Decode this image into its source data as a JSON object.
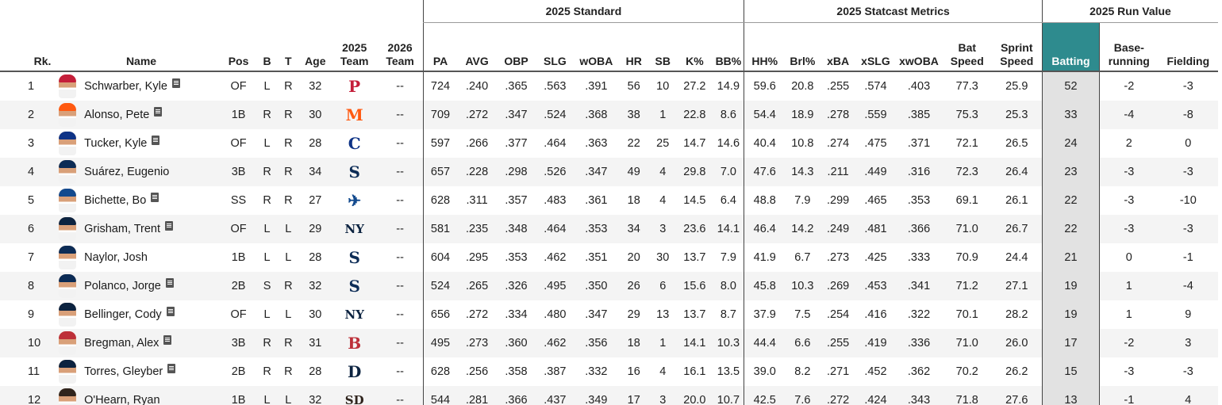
{
  "groups": {
    "standard": "2025 Standard",
    "statcast": "2025 Statcast Metrics",
    "run_value": "2025 Run Value"
  },
  "headers": {
    "rk": "Rk.",
    "name": "Name",
    "pos": "Pos",
    "b": "B",
    "t": "T",
    "age": "Age",
    "team_2025": [
      "2025",
      "Team"
    ],
    "team_2026": [
      "2026",
      "Team"
    ],
    "pa": "PA",
    "avg": "AVG",
    "obp": "OBP",
    "slg": "SLG",
    "woba": "wOBA",
    "hr": "HR",
    "sb": "SB",
    "k_pct": "K%",
    "bb_pct": "BB%",
    "hh_pct": "HH%",
    "brl_pct": "Brl%",
    "xba": "xBA",
    "xslg": "xSLG",
    "xwoba": "xwOBA",
    "bat_speed": [
      "Bat",
      "Speed"
    ],
    "sprint_speed": [
      "Sprint",
      "Speed"
    ],
    "batting": "Batting",
    "baserunning": [
      "Base-",
      "running"
    ],
    "fielding": "Fielding"
  },
  "colors": {
    "batting_header": "#2e8b8e",
    "batting_column": "#e2e2e2",
    "row_stripe": "#f4f4f4"
  },
  "rows": [
    {
      "rk": "1",
      "name": "Schwarber, Kyle",
      "note": true,
      "pos": "OF",
      "b": "L",
      "t": "R",
      "age": "32",
      "team_logo": "P",
      "team_color": "#c41e3a",
      "team_2026": "--",
      "pa": "724",
      "avg": ".240",
      "obp": ".365",
      "slg": ".563",
      "woba": ".391",
      "hr": "56",
      "sb": "10",
      "k": "27.2",
      "bb": "14.9",
      "hh": "59.6",
      "brl": "20.8",
      "xba": ".255",
      "xslg": ".574",
      "xwoba": ".403",
      "bat": "77.3",
      "sprint": "25.9",
      "batting": "52",
      "baserun": "-2",
      "fielding": "-3"
    },
    {
      "rk": "2",
      "name": "Alonso, Pete",
      "note": true,
      "pos": "1B",
      "b": "R",
      "t": "R",
      "age": "30",
      "team_logo": "M",
      "team_color": "#ff5910",
      "team_2026": "--",
      "pa": "709",
      "avg": ".272",
      "obp": ".347",
      "slg": ".524",
      "woba": ".368",
      "hr": "38",
      "sb": "1",
      "k": "22.8",
      "bb": "8.6",
      "hh": "54.4",
      "brl": "18.9",
      "xba": ".278",
      "xslg": ".559",
      "xwoba": ".385",
      "bat": "75.3",
      "sprint": "25.3",
      "batting": "33",
      "baserun": "-4",
      "fielding": "-8"
    },
    {
      "rk": "3",
      "name": "Tucker, Kyle",
      "note": true,
      "pos": "OF",
      "b": "L",
      "t": "R",
      "age": "28",
      "team_logo": "C",
      "team_color": "#0e3386",
      "team_2026": "--",
      "pa": "597",
      "avg": ".266",
      "obp": ".377",
      "slg": ".464",
      "woba": ".363",
      "hr": "22",
      "sb": "25",
      "k": "14.7",
      "bb": "14.6",
      "hh": "40.4",
      "brl": "10.8",
      "xba": ".274",
      "xslg": ".475",
      "xwoba": ".371",
      "bat": "72.1",
      "sprint": "26.5",
      "batting": "24",
      "baserun": "2",
      "fielding": "0"
    },
    {
      "rk": "4",
      "name": "Suárez, Eugenio",
      "note": false,
      "pos": "3B",
      "b": "R",
      "t": "R",
      "age": "34",
      "team_logo": "S",
      "team_color": "#0c2c56",
      "team_2026": "--",
      "pa": "657",
      "avg": ".228",
      "obp": ".298",
      "slg": ".526",
      "woba": ".347",
      "hr": "49",
      "sb": "4",
      "k": "29.8",
      "bb": "7.0",
      "hh": "47.6",
      "brl": "14.3",
      "xba": ".211",
      "xslg": ".449",
      "xwoba": ".316",
      "bat": "72.3",
      "sprint": "26.4",
      "batting": "23",
      "baserun": "-3",
      "fielding": "-3"
    },
    {
      "rk": "5",
      "name": "Bichette, Bo",
      "note": true,
      "pos": "SS",
      "b": "R",
      "t": "R",
      "age": "27",
      "team_logo": "✈",
      "team_color": "#134a8e",
      "team_2026": "--",
      "pa": "628",
      "avg": ".311",
      "obp": ".357",
      "slg": ".483",
      "woba": ".361",
      "hr": "18",
      "sb": "4",
      "k": "14.5",
      "bb": "6.4",
      "hh": "48.8",
      "brl": "7.9",
      "xba": ".299",
      "xslg": ".465",
      "xwoba": ".353",
      "bat": "69.1",
      "sprint": "26.1",
      "batting": "22",
      "baserun": "-3",
      "fielding": "-10"
    },
    {
      "rk": "6",
      "name": "Grisham, Trent",
      "note": true,
      "pos": "OF",
      "b": "L",
      "t": "L",
      "age": "29",
      "team_logo": "NY",
      "team_color": "#0c2340",
      "team_2026": "--",
      "pa": "581",
      "avg": ".235",
      "obp": ".348",
      "slg": ".464",
      "woba": ".353",
      "hr": "34",
      "sb": "3",
      "k": "23.6",
      "bb": "14.1",
      "hh": "46.4",
      "brl": "14.2",
      "xba": ".249",
      "xslg": ".481",
      "xwoba": ".366",
      "bat": "71.0",
      "sprint": "26.7",
      "batting": "22",
      "baserun": "-3",
      "fielding": "-3"
    },
    {
      "rk": "7",
      "name": "Naylor, Josh",
      "note": false,
      "pos": "1B",
      "b": "L",
      "t": "L",
      "age": "28",
      "team_logo": "S",
      "team_color": "#0c2c56",
      "team_2026": "--",
      "pa": "604",
      "avg": ".295",
      "obp": ".353",
      "slg": ".462",
      "woba": ".351",
      "hr": "20",
      "sb": "30",
      "k": "13.7",
      "bb": "7.9",
      "hh": "41.9",
      "brl": "6.7",
      "xba": ".273",
      "xslg": ".425",
      "xwoba": ".333",
      "bat": "70.9",
      "sprint": "24.4",
      "batting": "21",
      "baserun": "0",
      "fielding": "-1"
    },
    {
      "rk": "8",
      "name": "Polanco, Jorge",
      "note": true,
      "pos": "2B",
      "b": "S",
      "t": "R",
      "age": "32",
      "team_logo": "S",
      "team_color": "#0c2c56",
      "team_2026": "--",
      "pa": "524",
      "avg": ".265",
      "obp": ".326",
      "slg": ".495",
      "woba": ".350",
      "hr": "26",
      "sb": "6",
      "k": "15.6",
      "bb": "8.0",
      "hh": "45.8",
      "brl": "10.3",
      "xba": ".269",
      "xslg": ".453",
      "xwoba": ".341",
      "bat": "71.2",
      "sprint": "27.1",
      "batting": "19",
      "baserun": "1",
      "fielding": "-4"
    },
    {
      "rk": "9",
      "name": "Bellinger, Cody",
      "note": true,
      "pos": "OF",
      "b": "L",
      "t": "L",
      "age": "30",
      "team_logo": "NY",
      "team_color": "#0c2340",
      "team_2026": "--",
      "pa": "656",
      "avg": ".272",
      "obp": ".334",
      "slg": ".480",
      "woba": ".347",
      "hr": "29",
      "sb": "13",
      "k": "13.7",
      "bb": "8.7",
      "hh": "37.9",
      "brl": "7.5",
      "xba": ".254",
      "xslg": ".416",
      "xwoba": ".322",
      "bat": "70.1",
      "sprint": "28.2",
      "batting": "19",
      "baserun": "1",
      "fielding": "9"
    },
    {
      "rk": "10",
      "name": "Bregman, Alex",
      "note": true,
      "pos": "3B",
      "b": "R",
      "t": "R",
      "age": "31",
      "team_logo": "B",
      "team_color": "#bd3039",
      "team_2026": "--",
      "pa": "495",
      "avg": ".273",
      "obp": ".360",
      "slg": ".462",
      "woba": ".356",
      "hr": "18",
      "sb": "1",
      "k": "14.1",
      "bb": "10.3",
      "hh": "44.4",
      "brl": "6.6",
      "xba": ".255",
      "xslg": ".419",
      "xwoba": ".336",
      "bat": "71.0",
      "sprint": "26.0",
      "batting": "17",
      "baserun": "-2",
      "fielding": "3"
    },
    {
      "rk": "11",
      "name": "Torres, Gleyber",
      "note": true,
      "pos": "2B",
      "b": "R",
      "t": "R",
      "age": "28",
      "team_logo": "D",
      "team_color": "#0c2340",
      "team_2026": "--",
      "pa": "628",
      "avg": ".256",
      "obp": ".358",
      "slg": ".387",
      "woba": ".332",
      "hr": "16",
      "sb": "4",
      "k": "16.1",
      "bb": "13.5",
      "hh": "39.0",
      "brl": "8.2",
      "xba": ".271",
      "xslg": ".452",
      "xwoba": ".362",
      "bat": "70.2",
      "sprint": "26.2",
      "batting": "15",
      "baserun": "-3",
      "fielding": "-3"
    },
    {
      "rk": "12",
      "name": "O'Hearn, Ryan",
      "note": false,
      "pos": "1B",
      "b": "L",
      "t": "L",
      "age": "32",
      "team_logo": "SD",
      "team_color": "#2f241d",
      "team_2026": "--",
      "pa": "544",
      "avg": ".281",
      "obp": ".366",
      "slg": ".437",
      "woba": ".349",
      "hr": "17",
      "sb": "3",
      "k": "20.0",
      "bb": "10.7",
      "hh": "42.5",
      "brl": "7.6",
      "xba": ".272",
      "xslg": ".424",
      "xwoba": ".343",
      "bat": "71.8",
      "sprint": "27.6",
      "batting": "13",
      "baserun": "-1",
      "fielding": "4"
    }
  ]
}
